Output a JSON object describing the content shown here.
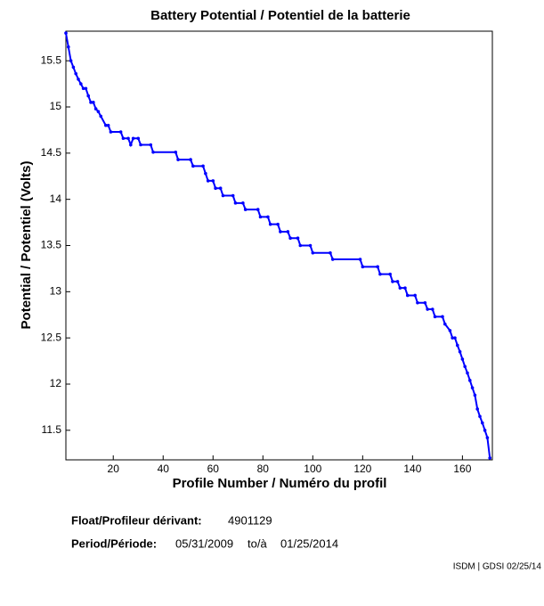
{
  "chart_data": {
    "type": "line",
    "title": "Battery Potential / Potentiel de la batterie",
    "xlabel": "Profile Number / Numéro du profil",
    "ylabel": "Potential / Potentiel (Volts)",
    "x": [
      1,
      2,
      3,
      4,
      5,
      6,
      7,
      8,
      9,
      10,
      11,
      12,
      13,
      14,
      15,
      17,
      18,
      19,
      23,
      24,
      26,
      27,
      28,
      30,
      31,
      35,
      36,
      45,
      46,
      51,
      52,
      56,
      57,
      58,
      60,
      61,
      63,
      64,
      68,
      69,
      72,
      73,
      78,
      79,
      82,
      83,
      86,
      87,
      90,
      91,
      94,
      95,
      99,
      100,
      107,
      108,
      119,
      120,
      126,
      127,
      131,
      132,
      134,
      135,
      137,
      138,
      141,
      142,
      145,
      146,
      148,
      149,
      152,
      153,
      155,
      156,
      157,
      158,
      159,
      160,
      161,
      162,
      163,
      164,
      165,
      166,
      167,
      168,
      169,
      170,
      171
    ],
    "series": [
      {
        "name": "Battery Potential",
        "color": "#0000ff",
        "values": [
          15.8,
          15.65,
          15.5,
          15.43,
          15.36,
          15.3,
          15.25,
          15.2,
          15.2,
          15.12,
          15.05,
          15.05,
          14.98,
          14.95,
          14.9,
          14.8,
          14.8,
          14.73,
          14.73,
          14.66,
          14.66,
          14.59,
          14.66,
          14.66,
          14.59,
          14.59,
          14.51,
          14.51,
          14.43,
          14.43,
          14.36,
          14.36,
          14.28,
          14.2,
          14.2,
          14.12,
          14.12,
          14.04,
          14.04,
          13.96,
          13.96,
          13.89,
          13.89,
          13.81,
          13.81,
          13.73,
          13.73,
          13.65,
          13.65,
          13.58,
          13.58,
          13.5,
          13.5,
          13.42,
          13.42,
          13.35,
          13.35,
          13.27,
          13.27,
          13.19,
          13.19,
          13.11,
          13.11,
          13.04,
          13.04,
          12.96,
          12.96,
          12.88,
          12.88,
          12.81,
          12.81,
          12.73,
          12.73,
          12.65,
          12.58,
          12.5,
          12.5,
          12.42,
          12.35,
          12.27,
          12.19,
          12.12,
          12.04,
          11.96,
          11.88,
          11.73,
          11.65,
          11.58,
          11.5,
          11.42,
          11.2
        ]
      }
    ],
    "xlim": [
      1,
      172
    ],
    "ylim": [
      11.18,
      15.82
    ],
    "xticks": [
      20,
      40,
      60,
      80,
      100,
      120,
      140,
      160
    ],
    "yticks": [
      11.5,
      12,
      12.5,
      13,
      13.5,
      14,
      14.5,
      15,
      15.5
    ],
    "footer": {
      "float_label": "Float/Profileur dérivant:",
      "float_id": "4901129",
      "period_label": "Period/Période:",
      "start": "05/31/2009",
      "to": "to/à",
      "end": "01/25/2014",
      "credit": "ISDM | GDSI 02/25/14"
    }
  }
}
